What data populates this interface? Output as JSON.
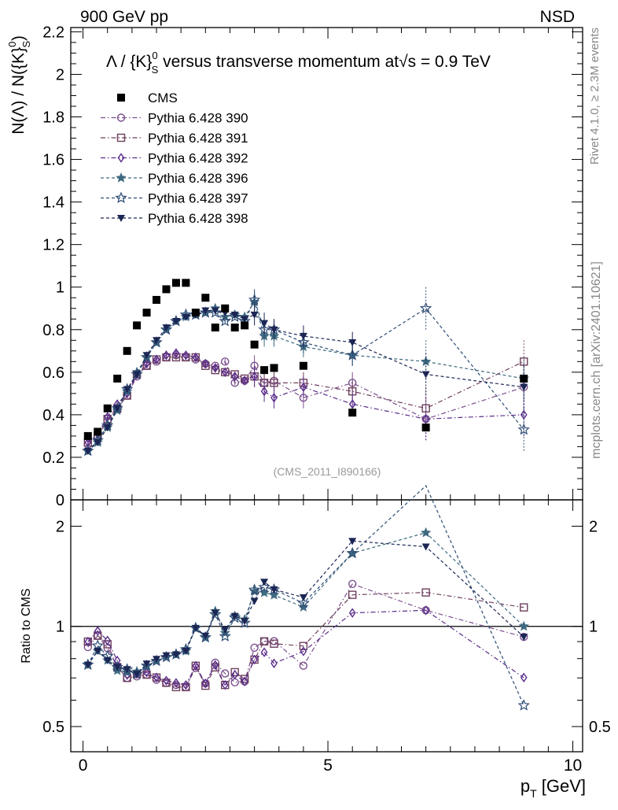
{
  "header": {
    "left": "900 GeV pp",
    "right": "NSD"
  },
  "side_labels": {
    "rivet": "Rivet 4.1.0, ≥ 2.3M events",
    "mcplots": "mcplots.cern.ch [arXiv:2401.10621]"
  },
  "watermark": "(CMS_2011_I890166)",
  "chart_data": {
    "type": "scatter",
    "title": "Λ / {K}S0 versus transverse momentum at√s = 0.9 TeV",
    "title_parts": {
      "pre": "Λ / {K}",
      "sup": "0",
      "sub": "S",
      "mid": " versus transverse momentum at",
      "root": "√s",
      "post": " = 0.9 TeV"
    },
    "ylabel_main": "N(Λ)  /  N({K}S0)",
    "ylabel_main_parts": {
      "pre": "N(Λ)  /  N({K}",
      "sup": "0",
      "sub": "S",
      "post": ")"
    },
    "ylabel_ratio": "Ratio to CMS",
    "xlabel": "pT [GeV]",
    "xlabel_parts": {
      "p": "p",
      "sub": "T",
      "post": " [GeV]"
    },
    "xlim": [
      -0.25,
      10.2
    ],
    "ylim_main": [
      0,
      2.22
    ],
    "ylim_ratio": [
      0.42,
      2.4
    ],
    "ratio_scale": "log",
    "x_ticks": [
      "0",
      "5",
      "10"
    ],
    "y_ticks_main": [
      "0",
      "0.2",
      "0.4",
      "0.6",
      "0.8",
      "1",
      "1.2",
      "1.4",
      "1.6",
      "1.8",
      "2",
      "2.2"
    ],
    "y_ticks_ratio": [
      "0.5",
      "1",
      "2"
    ],
    "reference": {
      "name": "CMS",
      "x": [
        0.1,
        0.3,
        0.5,
        0.7,
        0.9,
        1.1,
        1.3,
        1.5,
        1.7,
        1.9,
        2.1,
        2.3,
        2.5,
        2.7,
        2.9,
        3.1,
        3.3,
        3.5,
        3.7,
        3.9,
        4.5,
        5.5,
        7.0,
        9.0
      ],
      "y": [
        0.3,
        0.32,
        0.43,
        0.57,
        0.7,
        0.82,
        0.88,
        0.94,
        0.99,
        1.02,
        1.02,
        0.88,
        0.95,
        0.81,
        0.9,
        0.81,
        0.82,
        0.73,
        0.61,
        0.62,
        0.63,
        0.41,
        0.34,
        0.57
      ]
    },
    "series": [
      {
        "name": "Pythia 6.428 390",
        "color": "#7b4f8e",
        "marker": "circle-open",
        "dash": "dashdot",
        "values": [
          0.26,
          0.3,
          0.37,
          0.43,
          0.49,
          0.58,
          0.63,
          0.65,
          0.67,
          0.68,
          0.67,
          0.66,
          0.64,
          0.63,
          0.65,
          0.55,
          0.56,
          0.63,
          0.55,
          0.56,
          0.48,
          0.55,
          0.38,
          0.53
        ]
      },
      {
        "name": "Pythia 6.428 391",
        "color": "#6e3f5e",
        "marker": "square-open",
        "dash": "dashdot",
        "values": [
          0.27,
          0.3,
          0.38,
          0.43,
          0.49,
          0.59,
          0.63,
          0.66,
          0.67,
          0.67,
          0.67,
          0.67,
          0.63,
          0.61,
          0.6,
          0.59,
          0.57,
          0.58,
          0.55,
          0.55,
          0.55,
          0.51,
          0.43,
          0.65
        ]
      },
      {
        "name": "Pythia 6.428 392",
        "color": "#5a2d8a",
        "marker": "diamond-open",
        "dash": "dashdot",
        "values": [
          0.27,
          0.31,
          0.39,
          0.45,
          0.5,
          0.59,
          0.64,
          0.66,
          0.68,
          0.69,
          0.68,
          0.67,
          0.64,
          0.62,
          0.6,
          0.58,
          0.56,
          0.58,
          0.51,
          0.48,
          0.53,
          0.45,
          0.38,
          0.4
        ]
      },
      {
        "name": "Pythia 6.428 396",
        "color": "#3e6a80",
        "marker": "star-filled",
        "dash": "dashed",
        "values": [
          0.23,
          0.27,
          0.34,
          0.42,
          0.51,
          0.6,
          0.67,
          0.74,
          0.8,
          0.84,
          0.86,
          0.87,
          0.88,
          0.9,
          0.86,
          0.87,
          0.86,
          0.93,
          0.77,
          0.77,
          0.72,
          0.68,
          0.65,
          0.57
        ]
      },
      {
        "name": "Pythia 6.428 397",
        "color": "#2e4d75",
        "marker": "star-open",
        "dash": "dashed",
        "values": [
          0.23,
          0.28,
          0.35,
          0.43,
          0.52,
          0.59,
          0.67,
          0.74,
          0.8,
          0.84,
          0.87,
          0.87,
          0.88,
          0.88,
          0.84,
          0.86,
          0.84,
          0.94,
          0.8,
          0.8,
          0.74,
          0.68,
          0.9,
          0.33
        ]
      },
      {
        "name": "Pythia 6.428 398",
        "color": "#1c2654",
        "marker": "triangle-down-filled",
        "dash": "dashed",
        "values": [
          0.23,
          0.27,
          0.34,
          0.43,
          0.52,
          0.59,
          0.68,
          0.75,
          0.81,
          0.84,
          0.86,
          0.87,
          0.89,
          0.89,
          0.88,
          0.87,
          0.85,
          0.87,
          0.83,
          0.8,
          0.77,
          0.74,
          0.59,
          0.53
        ]
      }
    ]
  }
}
